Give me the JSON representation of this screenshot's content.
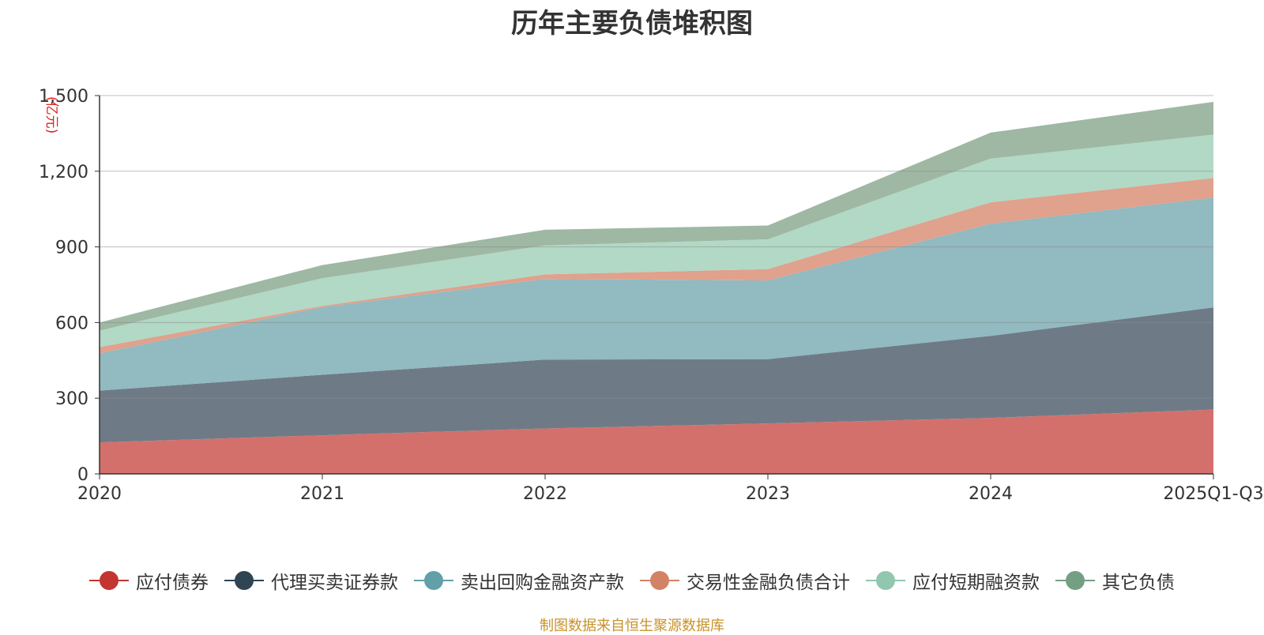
{
  "chart_data": {
    "type": "area",
    "stacked": true,
    "title": "历年主要负债堆积图",
    "unit_label": "(亿元)",
    "categories": [
      "2020",
      "2021",
      "2022",
      "2023",
      "2024",
      "2025Q1-Q3"
    ],
    "y_ticks": [
      "0",
      "300",
      "600",
      "900",
      "1,200",
      "1,500"
    ],
    "ylim": [
      0,
      1500
    ],
    "grid": true,
    "legend_position": "bottom",
    "series": [
      {
        "name": "应付债券",
        "color": "#c23531",
        "fill": "#d4706c",
        "values": [
          125,
          153,
          180,
          200,
          222,
          255
        ]
      },
      {
        "name": "代理买卖证券款",
        "color": "#2f4554",
        "fill": "#6e7b86",
        "values": [
          205,
          240,
          273,
          255,
          325,
          405
        ]
      },
      {
        "name": "卖出回购金融资产款",
        "color": "#61a0a8",
        "fill": "#91bac1",
        "values": [
          148,
          268,
          320,
          312,
          445,
          435
        ]
      },
      {
        "name": "交易性金融负债合计",
        "color": "#d48265",
        "fill": "#e0a18d",
        "values": [
          25,
          5,
          18,
          45,
          85,
          78
        ]
      },
      {
        "name": "应付短期融资款",
        "color": "#91c7ae",
        "fill": "#b1d9c5",
        "values": [
          65,
          110,
          115,
          118,
          173,
          172
        ]
      },
      {
        "name": "其它负债",
        "color": "#749f83",
        "fill": "#9eb8a3",
        "values": [
          32,
          52,
          62,
          55,
          103,
          130
        ]
      }
    ]
  },
  "source_note": "制图数据来自恒生聚源数据库"
}
